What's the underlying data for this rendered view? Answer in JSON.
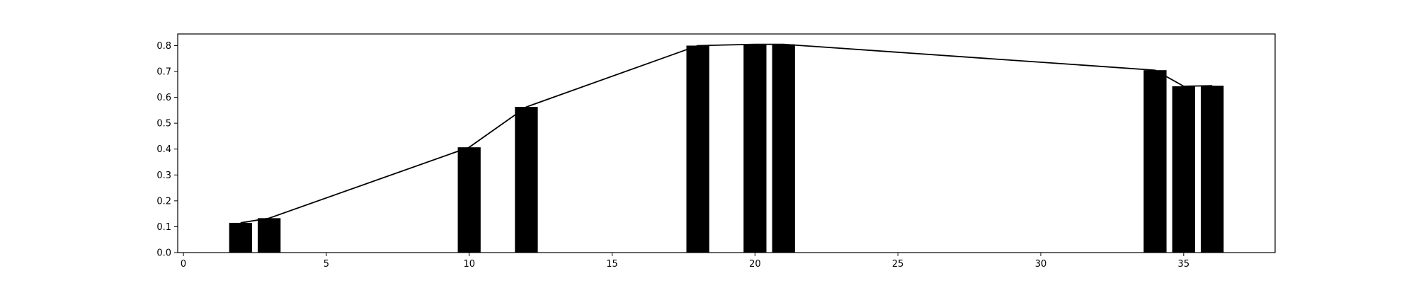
{
  "chart_data": {
    "type": "bar",
    "title": "",
    "xlabel": "",
    "ylabel": "",
    "xlim": [
      -0.2,
      38.2
    ],
    "ylim": [
      0,
      0.845
    ],
    "grid": false,
    "bar_width": 0.8,
    "bar_color": "#000000",
    "line_color": "#000000",
    "x_ticks": [
      0,
      5,
      10,
      15,
      20,
      25,
      30,
      35
    ],
    "y_ticks": [
      0.0,
      0.1,
      0.2,
      0.3,
      0.4,
      0.5,
      0.6,
      0.7,
      0.8
    ],
    "x": [
      2,
      3,
      10,
      12,
      18,
      20,
      21,
      34,
      35,
      36
    ],
    "values": [
      0.115,
      0.133,
      0.407,
      0.563,
      0.8,
      0.805,
      0.805,
      0.705,
      0.643,
      0.645
    ],
    "series": [
      {
        "type": "bar",
        "values": [
          0.115,
          0.133,
          0.407,
          0.563,
          0.8,
          0.805,
          0.805,
          0.705,
          0.643,
          0.645
        ]
      },
      {
        "type": "line",
        "values": [
          0.115,
          0.133,
          0.407,
          0.563,
          0.8,
          0.805,
          0.805,
          0.705,
          0.643,
          0.645
        ]
      }
    ]
  }
}
